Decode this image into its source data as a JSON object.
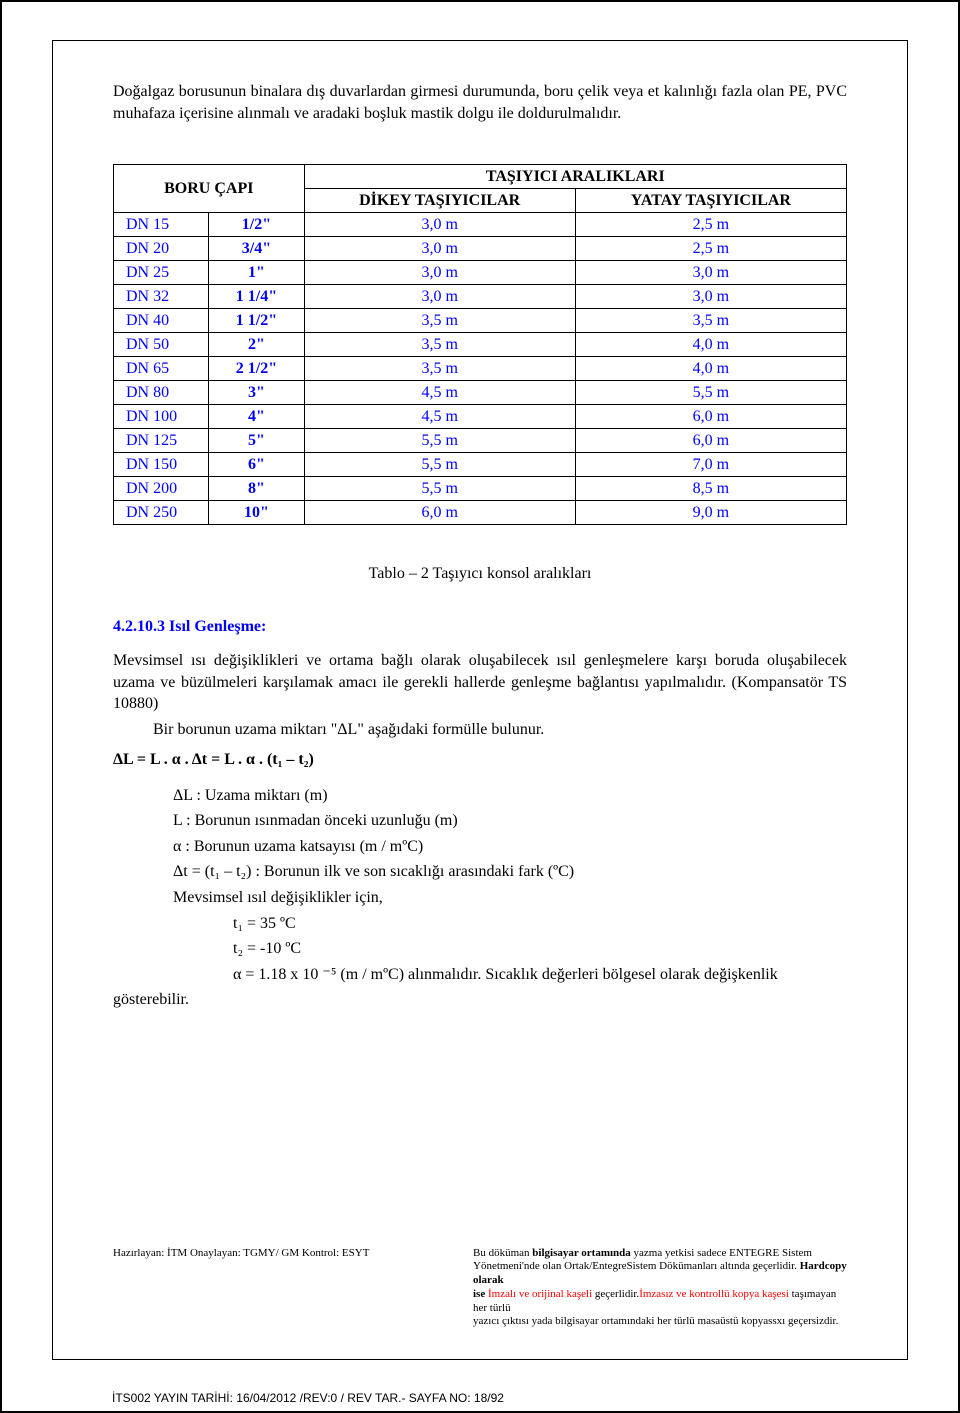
{
  "intro": "Doğalgaz borusunun binalara dış duvarlardan girmesi durumunda, boru çelik veya et kalınlığı fazla olan PE, PVC muhafaza içerisine alınmalı ve aradaki boşluk mastik dolgu ile doldurulmalıdır.",
  "table": {
    "header_group1": "BORU ÇAPI",
    "header_group2": "TAŞIYICI ARALIKLARI",
    "header_col3": "DİKEY TAŞIYICILAR",
    "header_col4": "YATAY TAŞIYICILAR",
    "colors": {
      "text": "#0000ff",
      "border": "#000000"
    },
    "rows": [
      {
        "dn": "DN 15",
        "size": "1/2\"",
        "d": "3,0 m",
        "y": "2,5 m"
      },
      {
        "dn": "DN 20",
        "size": "3/4\"",
        "d": "3,0 m",
        "y": "2,5 m"
      },
      {
        "dn": "DN 25",
        "size": "1\"",
        "d": "3,0 m",
        "y": "3,0 m"
      },
      {
        "dn": "DN 32",
        "size": "1 1/4\"",
        "d": "3,0 m",
        "y": "3,0 m"
      },
      {
        "dn": "DN 40",
        "size": "1 1/2\"",
        "d": "3,5 m",
        "y": "3,5 m"
      },
      {
        "dn": "DN 50",
        "size": "2\"",
        "d": "3,5 m",
        "y": "4,0 m"
      },
      {
        "dn": "DN 65",
        "size": "2 1/2\"",
        "d": "3,5 m",
        "y": "4,0 m"
      },
      {
        "dn": "DN 80",
        "size": "3\"",
        "d": "4,5 m",
        "y": "5,5 m"
      },
      {
        "dn": "DN 100",
        "size": "4\"",
        "d": "4,5 m",
        "y": "6,0 m"
      },
      {
        "dn": "DN 125",
        "size": "5\"",
        "d": "5,5 m",
        "y": "6,0 m"
      },
      {
        "dn": "DN 150",
        "size": "6\"",
        "d": "5,5 m",
        "y": "7,0 m"
      },
      {
        "dn": "DN 200",
        "size": "8\"",
        "d": "5,5 m",
        "y": "8,5 m"
      },
      {
        "dn": "DN 250",
        "size": "10\"",
        "d": "6,0 m",
        "y": "9,0 m"
      }
    ]
  },
  "caption": "Tablo – 2  Taşıyıcı konsol aralıkları",
  "section_title": "4.2.10.3 Isıl Genleşme:",
  "para1": "Mevsimsel ısı değişiklikleri ve ortama bağlı olarak oluşabilecek ısıl genleşmelere karşı boruda oluşabilecek uzama ve büzülmeleri karşılamak amacı ile gerekli hallerde genleşme bağlantısı yapılmalıdır. (Kompansatör  TS 10880)",
  "para2": "Bir borunun uzama miktarı \"ΔL\" aşağıdaki formülle bulunur.",
  "formula": "ΔL = L . α . Δt = L . α . (t₁ – t₂)",
  "defs": {
    "l1": "ΔL : Uzama miktarı (m)",
    "l2": "L : Borunun ısınmadan önceki uzunluğu (m)",
    "l3": "α : Borunun uzama katsayısı (m / mºC)",
    "l4": "Δt = (t₁ – t₂) : Borunun ilk ve son sıcaklığı arasındaki fark (ºC)",
    "l5": "Mevsimsel ısıl değişiklikler için,",
    "l6": "t₁ = 35 ºC",
    "l7": "t₂ = -10 ºC",
    "l8a": "α = 1.18 x 10 ⁻⁵ (m / mºC)  alınmalıdır. Sıcaklık değerleri bölgesel olarak değişkenlik",
    "l8b": "gösterebilir."
  },
  "footer": {
    "left": "Hazırlayan: İTM    Onaylayan: TGMY/ GM    Kontrol: ESYT",
    "r1a": "Bu döküman ",
    "r1b": "bilgisayar ortamında",
    "r1c": " yazma yetkisi sadece ENTEGRE Sistem",
    "r2a": "Yönetmeni'nde olan Ortak/EntegreSistem Dökümanları altında geçerlidir. ",
    "r2b": "Hardcopy olarak",
    "r3a": "ise ",
    "r3b": "İmzalı ve orijinal kaşeli",
    "r3c": " geçerlidir.",
    "r3d": "İmzasız ve kontrollü kopya kaşesi",
    "r3e": " taşımayan her türlü",
    "r4": "yazıcı çıktısı yada bilgisayar ortamındaki her türlü masaüstü kopyassxı geçersizdir."
  },
  "pagenum": "İTS002 YAYIN TARİHİ: 16/04/2012 /REV:0 / REV TAR.- SAYFA NO: 18/92"
}
